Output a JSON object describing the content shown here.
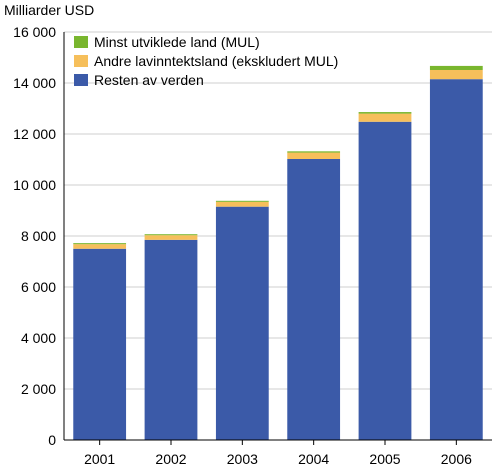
{
  "chart_data": {
    "type": "bar",
    "stacked": true,
    "unit_label": "Milliarder USD",
    "categories": [
      "2001",
      "2002",
      "2003",
      "2004",
      "2005",
      "2006"
    ],
    "series": [
      {
        "name": "Resten av verden",
        "color": "#3b5aa8",
        "values": [
          7500,
          7850,
          9150,
          11020,
          12480,
          14150
        ]
      },
      {
        "name": "Andre lavinntektsland (ekskludert MUL)",
        "color": "#f6bf5b",
        "values": [
          180,
          180,
          190,
          250,
          320,
          360
        ]
      },
      {
        "name": "Minst utviklede land (MUL)",
        "color": "#79b62e",
        "values": [
          40,
          40,
          40,
          50,
          60,
          160
        ]
      }
    ],
    "ylim": [
      0,
      16000
    ],
    "yticks": [
      0,
      2000,
      4000,
      6000,
      8000,
      10000,
      12000,
      14000,
      16000
    ],
    "ytick_labels": [
      "0",
      "2 000",
      "4 000",
      "6 000",
      "8 000",
      "10 000",
      "12 000",
      "14 000",
      "16 000"
    ],
    "legend_order": [
      "Minst utviklede land (MUL)",
      "Andre lavinntektsland (ekskludert MUL)",
      "Resten av verden"
    ],
    "legend_placement": "top-left",
    "grid": true,
    "background": "#ffffff",
    "grid_color": "#cfcfcf"
  }
}
